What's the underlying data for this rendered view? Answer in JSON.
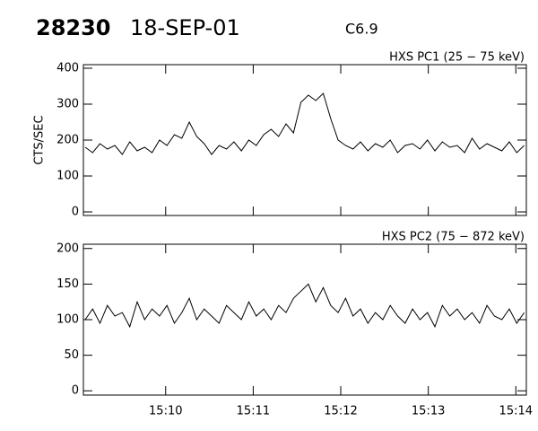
{
  "header": {
    "event": "28230",
    "date": "18-SEP-01",
    "class": "C6.9"
  },
  "chart_data": [
    {
      "type": "line",
      "title": "HXS PC1 (25 − 75 keV)",
      "y_label": "CTS/SEC",
      "color": "#000000",
      "x": [
        9.08,
        9.165,
        9.25,
        9.335,
        9.42,
        9.505,
        9.59,
        9.675,
        9.76,
        9.845,
        9.93,
        10.015,
        10.1,
        10.185,
        10.27,
        10.355,
        10.44,
        10.525,
        10.61,
        10.695,
        10.78,
        10.865,
        10.95,
        11.035,
        11.12,
        11.205,
        11.29,
        11.375,
        11.46,
        11.545,
        11.63,
        11.715,
        11.8,
        11.885,
        11.97,
        12.055,
        12.14,
        12.225,
        12.31,
        12.395,
        12.48,
        12.565,
        12.65,
        12.735,
        12.82,
        12.905,
        12.99,
        13.075,
        13.16,
        13.245,
        13.33,
        13.415,
        13.5,
        13.585,
        13.67,
        13.755,
        13.84,
        13.925,
        14.01,
        14.095
      ],
      "values": [
        180,
        165,
        190,
        175,
        185,
        160,
        195,
        170,
        180,
        165,
        200,
        185,
        215,
        205,
        250,
        210,
        190,
        160,
        185,
        175,
        195,
        170,
        200,
        185,
        215,
        230,
        210,
        245,
        220,
        305,
        325,
        310,
        330,
        260,
        200,
        185,
        175,
        195,
        170,
        190,
        180,
        200,
        165,
        185,
        190,
        175,
        200,
        170,
        195,
        180,
        185,
        165,
        205,
        175,
        190,
        180,
        170,
        195,
        165,
        185
      ],
      "xlim": [
        9.06,
        14.12
      ],
      "ylim": [
        -10,
        410
      ],
      "yticks": [
        0,
        100,
        200,
        300,
        400
      ]
    },
    {
      "type": "line",
      "title": "HXS PC2 (75 − 872 keV)",
      "color": "#000000",
      "x": [
        9.08,
        9.165,
        9.25,
        9.335,
        9.42,
        9.505,
        9.59,
        9.675,
        9.76,
        9.845,
        9.93,
        10.015,
        10.1,
        10.185,
        10.27,
        10.355,
        10.44,
        10.525,
        10.61,
        10.695,
        10.78,
        10.865,
        10.95,
        11.035,
        11.12,
        11.205,
        11.29,
        11.375,
        11.46,
        11.545,
        11.63,
        11.715,
        11.8,
        11.885,
        11.97,
        12.055,
        12.14,
        12.225,
        12.31,
        12.395,
        12.48,
        12.565,
        12.65,
        12.735,
        12.82,
        12.905,
        12.99,
        13.075,
        13.16,
        13.245,
        13.33,
        13.415,
        13.5,
        13.585,
        13.67,
        13.755,
        13.84,
        13.925,
        14.01,
        14.095
      ],
      "values": [
        100,
        115,
        95,
        120,
        105,
        110,
        90,
        125,
        100,
        115,
        105,
        120,
        95,
        110,
        130,
        100,
        115,
        105,
        95,
        120,
        110,
        100,
        125,
        105,
        115,
        100,
        120,
        110,
        130,
        140,
        150,
        125,
        145,
        120,
        110,
        130,
        105,
        115,
        95,
        110,
        100,
        120,
        105,
        95,
        115,
        100,
        110,
        90,
        120,
        105,
        115,
        100,
        110,
        95,
        120,
        105,
        100,
        115,
        95,
        110
      ],
      "xlim": [
        9.06,
        14.12
      ],
      "ylim": [
        -6,
        206
      ],
      "yticks": [
        0,
        50,
        100,
        150,
        200
      ],
      "xticks": [
        {
          "value": 10,
          "label": "15:10"
        },
        {
          "value": 11,
          "label": "15:11"
        },
        {
          "value": 12,
          "label": "15:12"
        },
        {
          "value": 13,
          "label": "15:13"
        },
        {
          "value": 14,
          "label": "15:14"
        }
      ]
    }
  ]
}
